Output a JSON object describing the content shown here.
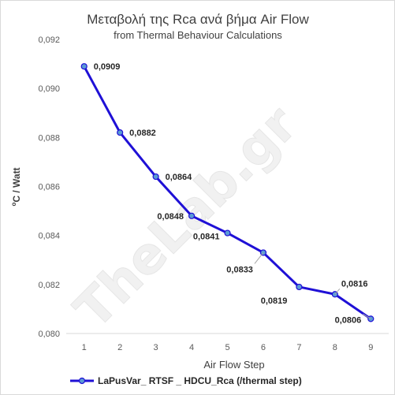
{
  "chart_data": {
    "type": "line",
    "title": "Μεταβολή της Rca ανά  βήμα Air Flow",
    "subtitle": "from Thermal  Behaviour Calculations",
    "xlabel": "Air Flow Step",
    "ylabel_main": "C / Watt",
    "ylabel_sup": "o",
    "categories": [
      "1",
      "2",
      "3",
      "4",
      "5",
      "6",
      "7",
      "8",
      "9"
    ],
    "ylim": [
      0.08,
      0.092
    ],
    "y_ticks": [
      "0,080",
      "0,082",
      "0,084",
      "0,086",
      "0,088",
      "0,090",
      "0,092"
    ],
    "grid": false,
    "legend_position": "bottom",
    "series": [
      {
        "name": "LaPusVar_ RTSF _ HDCU_Rca (/thermal step)",
        "color": "#1f10d6",
        "values": [
          0.0909,
          0.0882,
          0.0864,
          0.0848,
          0.0841,
          0.0833,
          0.0819,
          0.0816,
          0.0806
        ],
        "labels": [
          "0,0909",
          "0,0882",
          "0,0864",
          "0,0848",
          "0,0841",
          "0,0833",
          "0,0819",
          "0,0816",
          "0,0806"
        ],
        "label_colors": [
          "#262626",
          "#262626",
          "#262626",
          "#262626",
          "#262626",
          "#262626",
          "#262626",
          "#262626",
          "#ff0000"
        ]
      }
    ]
  },
  "watermark": "TheLab.gr"
}
